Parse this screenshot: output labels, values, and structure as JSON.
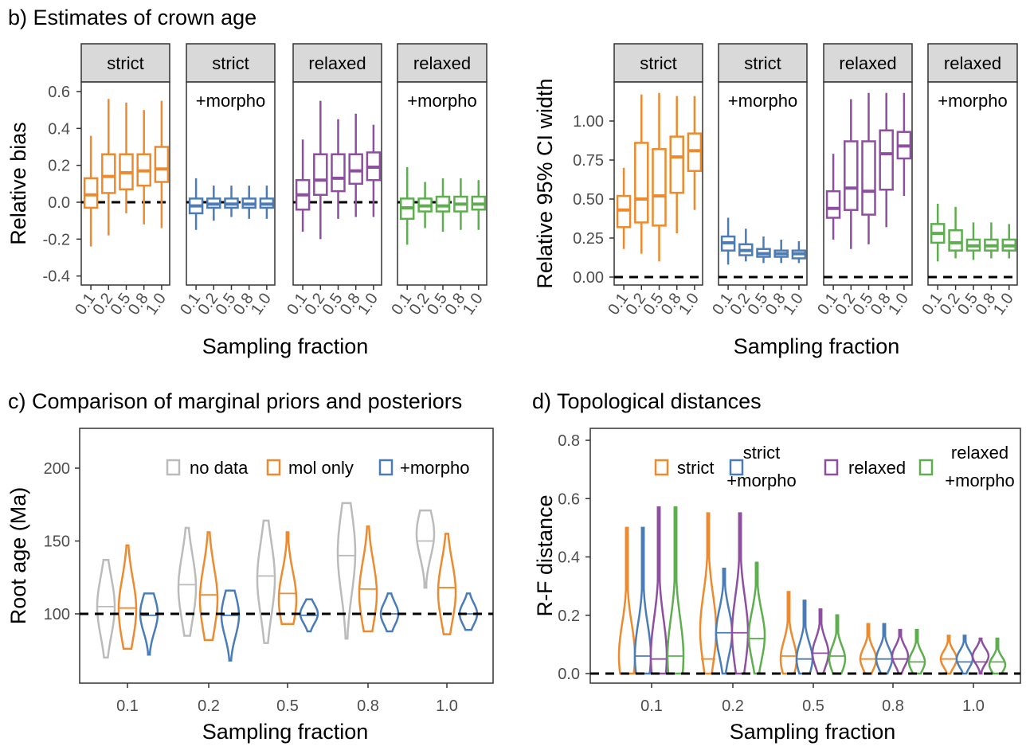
{
  "chart_data": [
    {
      "type": "box",
      "title": "b) Estimates of crown age",
      "ylabel": "Relative bias",
      "xlabel": "Sampling fraction",
      "ylim": [
        -0.45,
        0.65
      ],
      "yticks": [
        "0.6",
        "0.4",
        "0.2",
        "0.0",
        "-0.2",
        "-0.4"
      ],
      "ytick_values": [
        0.6,
        0.4,
        0.2,
        0.0,
        -0.2,
        -0.4
      ],
      "reference_line": 0,
      "categories": [
        "0.1",
        "0.2",
        "0.5",
        "0.8",
        "1.0"
      ],
      "facets": [
        {
          "strip": "strict",
          "sublabel": "",
          "color": "#EE8A2E",
          "boxes": [
            [
              -0.24,
              -0.03,
              0.04,
              0.13,
              0.36
            ],
            [
              -0.18,
              0.05,
              0.14,
              0.26,
              0.56
            ],
            [
              -0.06,
              0.07,
              0.16,
              0.26,
              0.54
            ],
            [
              -0.12,
              0.09,
              0.17,
              0.26,
              0.5
            ],
            [
              -0.14,
              0.11,
              0.18,
              0.3,
              0.55
            ]
          ]
        },
        {
          "strip": "strict",
          "sublabel": "+morpho",
          "color": "#4A7DB8",
          "boxes": [
            [
              -0.15,
              -0.06,
              -0.02,
              0.02,
              0.13
            ],
            [
              -0.1,
              -0.03,
              -0.01,
              0.02,
              0.09
            ],
            [
              -0.08,
              -0.03,
              -0.01,
              0.02,
              0.09
            ],
            [
              -0.09,
              -0.03,
              -0.01,
              0.02,
              0.09
            ],
            [
              -0.09,
              -0.03,
              -0.01,
              0.02,
              0.09
            ]
          ]
        },
        {
          "strip": "relaxed",
          "sublabel": "",
          "color": "#8E4FA0",
          "boxes": [
            [
              -0.16,
              -0.04,
              0.04,
              0.12,
              0.34
            ],
            [
              -0.2,
              0.04,
              0.12,
              0.26,
              0.55
            ],
            [
              -0.09,
              0.06,
              0.13,
              0.26,
              0.45
            ],
            [
              -0.08,
              0.1,
              0.17,
              0.26,
              0.48
            ],
            [
              -0.08,
              0.12,
              0.19,
              0.27,
              0.42
            ]
          ]
        },
        {
          "strip": "relaxed",
          "sublabel": "+morpho",
          "color": "#5DAE4E",
          "boxes": [
            [
              -0.23,
              -0.09,
              -0.03,
              0.02,
              0.19
            ],
            [
              -0.14,
              -0.05,
              -0.02,
              0.02,
              0.11
            ],
            [
              -0.16,
              -0.05,
              -0.02,
              0.03,
              0.13
            ],
            [
              -0.15,
              -0.05,
              -0.01,
              0.03,
              0.13
            ],
            [
              -0.15,
              -0.04,
              -0.01,
              0.03,
              0.12
            ]
          ]
        }
      ]
    },
    {
      "type": "box",
      "title": "",
      "ylabel": "Relative 95% CI width",
      "xlabel": "Sampling fraction",
      "ylim": [
        -0.05,
        1.22
      ],
      "yticks": [
        "1.00",
        "0.75",
        "0.50",
        "0.25",
        "0.00"
      ],
      "ytick_values": [
        1.0,
        0.75,
        0.5,
        0.25,
        0.0
      ],
      "reference_line": 0,
      "categories": [
        "0.1",
        "0.2",
        "0.5",
        "0.8",
        "1.0"
      ],
      "facets": [
        {
          "strip": "strict",
          "sublabel": "",
          "color": "#EE8A2E",
          "boxes": [
            [
              0.18,
              0.32,
              0.43,
              0.52,
              0.7
            ],
            [
              0.15,
              0.35,
              0.5,
              0.86,
              1.17
            ],
            [
              0.1,
              0.33,
              0.52,
              0.82,
              1.18
            ],
            [
              0.28,
              0.54,
              0.77,
              0.9,
              1.16
            ],
            [
              0.43,
              0.68,
              0.81,
              0.92,
              1.16
            ]
          ]
        },
        {
          "strip": "strict",
          "sublabel": "+morpho",
          "color": "#4A7DB8",
          "boxes": [
            [
              0.08,
              0.17,
              0.22,
              0.26,
              0.38
            ],
            [
              0.1,
              0.14,
              0.17,
              0.21,
              0.31
            ],
            [
              0.09,
              0.13,
              0.15,
              0.18,
              0.26
            ],
            [
              0.09,
              0.13,
              0.15,
              0.17,
              0.24
            ],
            [
              0.09,
              0.12,
              0.15,
              0.17,
              0.23
            ]
          ]
        },
        {
          "strip": "relaxed",
          "sublabel": "",
          "color": "#8E4FA0",
          "boxes": [
            [
              0.24,
              0.38,
              0.44,
              0.55,
              0.79
            ],
            [
              0.18,
              0.43,
              0.57,
              0.87,
              1.14
            ],
            [
              0.21,
              0.4,
              0.55,
              0.87,
              1.18
            ],
            [
              0.32,
              0.56,
              0.79,
              0.94,
              1.18
            ],
            [
              0.52,
              0.76,
              0.84,
              0.93,
              1.18
            ]
          ]
        },
        {
          "strip": "relaxed",
          "sublabel": "+morpho",
          "color": "#5DAE4E",
          "boxes": [
            [
              0.1,
              0.22,
              0.28,
              0.34,
              0.47
            ],
            [
              0.12,
              0.17,
              0.22,
              0.3,
              0.45
            ],
            [
              0.11,
              0.17,
              0.2,
              0.24,
              0.35
            ],
            [
              0.12,
              0.17,
              0.2,
              0.24,
              0.35
            ],
            [
              0.12,
              0.17,
              0.2,
              0.24,
              0.34
            ]
          ]
        }
      ]
    },
    {
      "type": "violin",
      "title": "c) Comparison of marginal priors and posteriors",
      "ylabel": "Root age (Ma)",
      "xlabel": "Sampling fraction",
      "ylim": [
        45,
        227
      ],
      "yticks": [
        "200",
        "150",
        "100"
      ],
      "ytick_values": [
        200,
        150,
        100
      ],
      "reference_line": 100,
      "categories": [
        "0.1",
        "0.2",
        "0.5",
        "0.8",
        "1.0"
      ],
      "legend_position": "top-right",
      "series": [
        {
          "name": "no data",
          "color": "#BBBBBB",
          "violins": [
            {
              "min": 70,
              "median": 105,
              "max": 137,
              "mode": 105
            },
            {
              "min": 85,
              "median": 120,
              "max": 159,
              "mode": 118
            },
            {
              "min": 80,
              "median": 126,
              "max": 164,
              "mode": 124
            },
            {
              "min": 83,
              "median": 140,
              "max": 176,
              "mode": 142
            },
            {
              "min": 118,
              "median": 150,
              "max": 171,
              "mode": 155
            }
          ]
        },
        {
          "name": "mol only",
          "color": "#EE8A2E",
          "violins": [
            {
              "min": 76,
              "median": 104,
              "max": 147,
              "mode": 103
            },
            {
              "min": 82,
              "median": 113,
              "max": 156,
              "mode": 110
            },
            {
              "min": 93,
              "median": 114,
              "max": 156,
              "mode": 110
            },
            {
              "min": 88,
              "median": 117,
              "max": 160,
              "mode": 114
            },
            {
              "min": 86,
              "median": 118,
              "max": 155,
              "mode": 115
            }
          ]
        },
        {
          "name": "+morpho",
          "color": "#4A7DB8",
          "violins": [
            {
              "min": 72,
              "median": 99,
              "max": 114,
              "mode": 100
            },
            {
              "min": 68,
              "median": 99,
              "max": 116,
              "mode": 99
            },
            {
              "min": 88,
              "median": 99,
              "max": 110,
              "mode": 100
            },
            {
              "min": 88,
              "median": 100,
              "max": 114,
              "mode": 100
            },
            {
              "min": 89,
              "median": 100,
              "max": 114,
              "mode": 100
            }
          ]
        }
      ]
    },
    {
      "type": "violin",
      "title": "d) Topological distances",
      "ylabel": "R-F distance",
      "xlabel": "Sampling fraction",
      "ylim": [
        -0.04,
        0.84
      ],
      "yticks": [
        "0.8",
        "0.6",
        "0.4",
        "0.2",
        "0.0"
      ],
      "ytick_values": [
        0.8,
        0.6,
        0.4,
        0.2,
        0.0
      ],
      "reference_line": 0,
      "categories": [
        "0.1",
        "0.2",
        "0.5",
        "0.8",
        "1.0"
      ],
      "legend_position": "top-right",
      "series": [
        {
          "name": "strict",
          "name2": "",
          "color": "#EE8A2E",
          "violins": [
            {
              "min": 0,
              "median": 0.0,
              "max": 0.5,
              "mode": 0.06
            },
            {
              "min": 0,
              "median": 0.05,
              "max": 0.55,
              "mode": 0.15
            },
            {
              "min": 0,
              "median": 0.06,
              "max": 0.28,
              "mode": 0.05
            },
            {
              "min": 0,
              "median": 0.05,
              "max": 0.17,
              "mode": 0.05
            },
            {
              "min": 0,
              "median": 0.05,
              "max": 0.13,
              "mode": 0.05
            }
          ]
        },
        {
          "name": "strict",
          "name2": "+morpho",
          "color": "#4A7DB8",
          "violins": [
            {
              "min": 0,
              "median": 0.06,
              "max": 0.5,
              "mode": 0.06
            },
            {
              "min": 0,
              "median": 0.14,
              "max": 0.36,
              "mode": 0.14
            },
            {
              "min": 0,
              "median": 0.05,
              "max": 0.25,
              "mode": 0.05
            },
            {
              "min": 0,
              "median": 0.05,
              "max": 0.17,
              "mode": 0.05
            },
            {
              "min": 0,
              "median": 0.04,
              "max": 0.13,
              "mode": 0.05
            }
          ]
        },
        {
          "name": "relaxed",
          "name2": "",
          "color": "#8E4FA0",
          "violins": [
            {
              "min": 0,
              "median": 0.05,
              "max": 0.57,
              "mode": 0.06
            },
            {
              "min": 0,
              "median": 0.14,
              "max": 0.55,
              "mode": 0.14
            },
            {
              "min": 0,
              "median": 0.07,
              "max": 0.22,
              "mode": 0.07
            },
            {
              "min": 0,
              "median": 0.05,
              "max": 0.15,
              "mode": 0.06
            },
            {
              "min": 0,
              "median": 0.04,
              "max": 0.12,
              "mode": 0.06
            }
          ]
        },
        {
          "name": "relaxed",
          "name2": "+morpho",
          "color": "#5DAE4E",
          "violins": [
            {
              "min": 0,
              "median": 0.06,
              "max": 0.57,
              "mode": 0.06
            },
            {
              "min": 0,
              "median": 0.12,
              "max": 0.38,
              "mode": 0.13
            },
            {
              "min": 0,
              "median": 0.06,
              "max": 0.2,
              "mode": 0.05
            },
            {
              "min": 0,
              "median": 0.04,
              "max": 0.15,
              "mode": 0.04
            },
            {
              "min": 0,
              "median": 0.04,
              "max": 0.12,
              "mode": 0.03
            }
          ]
        }
      ]
    }
  ]
}
